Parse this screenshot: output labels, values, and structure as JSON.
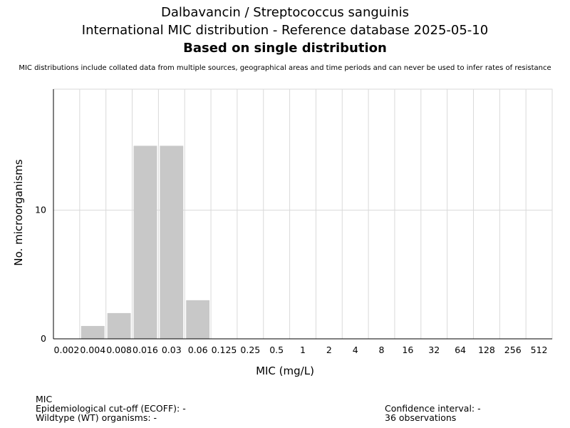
{
  "header": {
    "title_line1": "Dalbavancin / Streptococcus sanguinis",
    "title_line2": "International MIC distribution - Reference database 2025-05-10",
    "title_line3": "Based on single distribution",
    "disclaimer": "MIC distributions include collated data from multiple sources, geographical areas and time periods and can never be used to infer rates of resistance"
  },
  "chart_data": {
    "type": "bar",
    "categories": [
      "0.002",
      "0.004",
      "0.008",
      "0.016",
      "0.03",
      "0.06",
      "0.125",
      "0.25",
      "0.5",
      "1",
      "2",
      "4",
      "8",
      "16",
      "32",
      "64",
      "128",
      "256",
      "512"
    ],
    "values": [
      0,
      1,
      2,
      15,
      15,
      3,
      0,
      0,
      0,
      0,
      0,
      0,
      0,
      0,
      0,
      0,
      0,
      0,
      0
    ],
    "xlabel": "MIC (mg/L)",
    "ylabel": "No. microorganisms",
    "ylim": [
      0,
      19.4
    ],
    "yticks": [
      0,
      10
    ],
    "grid": true,
    "bar_color": "#c8c8c8",
    "grid_color": "#d9d9d9"
  },
  "footer": {
    "mic_label": "MIC",
    "ecoff": "Epidemiological cut-off (ECOFF): -",
    "wildtype": "Wildtype (WT) organisms:  -",
    "confidence": "Confidence interval: -",
    "observations": "36 observations"
  }
}
